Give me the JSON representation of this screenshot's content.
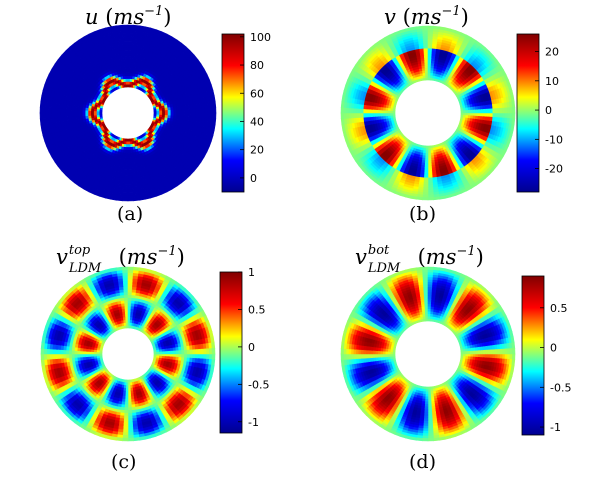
{
  "chart_data": [
    {
      "type": "heatmap",
      "panel": "(a)",
      "title_parts": {
        "base": "u",
        "unit_open": "(",
        "unit": "ms",
        "unit_exp": "−1",
        "unit_close": ")"
      },
      "caption": "(a)",
      "pattern": "hexagonal ring of high values near inner radius, decaying outward",
      "colorbar": {
        "ticks": [
          "100",
          "80",
          "60",
          "40",
          "20",
          "0"
        ],
        "values": [
          100,
          80,
          60,
          40,
          20,
          0
        ],
        "range": [
          -10,
          102
        ]
      }
    },
    {
      "type": "heatmap",
      "panel": "(b)",
      "title_parts": {
        "base": "v",
        "unit_open": "(",
        "unit": "ms",
        "unit_exp": "−1",
        "unit_close": ")"
      },
      "caption": "(b)",
      "pattern": "6-fold alternating positive/negative lobes",
      "colorbar": {
        "ticks": [
          "20",
          "10",
          "0",
          "-10",
          "-20"
        ],
        "values": [
          20,
          10,
          0,
          -10,
          -20
        ],
        "range": [
          -28,
          26
        ]
      }
    },
    {
      "type": "heatmap",
      "panel": "(c)",
      "title_parts": {
        "base": "v",
        "sup": "top",
        "sub": "LDM",
        "unit_open": "(",
        "unit": "ms",
        "unit_exp": "−1",
        "unit_close": ")"
      },
      "caption": "(c)",
      "pattern": "6-fold alternating lobes at two radii",
      "colorbar": {
        "ticks": [
          "1",
          "0.5",
          "0",
          "-0.5",
          "-1"
        ],
        "values": [
          1,
          0.5,
          0,
          -0.5,
          -1
        ],
        "range": [
          -1.15,
          1
        ]
      }
    },
    {
      "type": "heatmap",
      "panel": "(d)",
      "title_parts": {
        "base": "v",
        "sup": "bot",
        "sub": "LDM",
        "unit_open": "(",
        "unit": "ms",
        "unit_exp": "−1",
        "unit_close": ")"
      },
      "caption": "(d)",
      "pattern": "6-fold alternating elongated lobes",
      "colorbar": {
        "ticks": [
          "0.5",
          "0",
          "-0.5",
          "-1"
        ],
        "values": [
          0.5,
          0,
          -0.5,
          -1
        ],
        "range": [
          -1.1,
          0.9
        ]
      }
    }
  ],
  "colormap": [
    "#00008f",
    "#0000ff",
    "#00ffff",
    "#ffff00",
    "#ff0000",
    "#800000"
  ]
}
